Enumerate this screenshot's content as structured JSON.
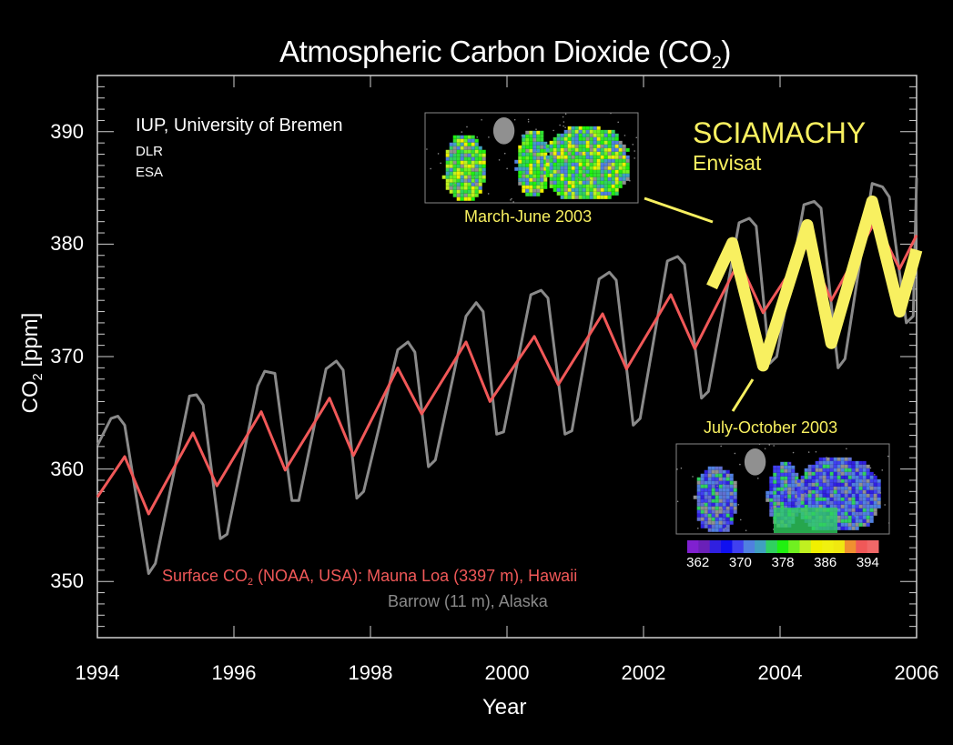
{
  "chart_data": {
    "type": "line",
    "title": "Atmospheric Carbon Dioxide (CO",
    "title_subscript": "2",
    "title_suffix": ")",
    "xlabel": "Year",
    "ylabel": "CO",
    "ylabel_subscript": "2",
    "ylabel_suffix": " [ppm]",
    "xlim": [
      1994,
      2006
    ],
    "ylim": [
      345,
      395
    ],
    "xticks": [
      1994,
      1996,
      1998,
      2000,
      2002,
      2004,
      2006
    ],
    "xtick_labels": [
      "1994",
      "1996",
      "1998",
      "2000",
      "2002",
      "2004",
      "2006"
    ],
    "yticks": [
      350,
      360,
      370,
      380,
      390
    ],
    "ytick_labels": [
      "350",
      "360",
      "370",
      "380",
      "390"
    ],
    "grid": false,
    "credits": [
      "IUP, University of Bremen",
      "DLR",
      "ESA"
    ],
    "instrument": {
      "name": "SCIAMACHY",
      "platform": "Envisat"
    },
    "legend": {
      "placement": "bottom-left",
      "line1_prefix": "Surface CO",
      "line1_subscript": "2",
      "line1_suffix": " (NOAA, USA): Mauna Loa (3397 m), Hawaii",
      "line2": "Barrow (11 m), Alaska"
    },
    "series": [
      {
        "name": "Mauna Loa (3397 m), Hawaii",
        "color": "#f05858",
        "x": [
          1994.0,
          1994.4,
          1994.75,
          1995.4,
          1995.75,
          1996.4,
          1996.75,
          1997.4,
          1997.75,
          1998.4,
          1998.75,
          1999.4,
          1999.75,
          2000.4,
          2000.75,
          2001.4,
          2001.75,
          2002.4,
          2002.75,
          2003.4,
          2003.75,
          2004.4,
          2004.75,
          2005.4,
          2005.75,
          2006.0
        ],
        "y": [
          357.5,
          361.1,
          356.0,
          363.2,
          358.5,
          365.1,
          359.9,
          366.3,
          361.2,
          369.0,
          364.9,
          371.3,
          366.0,
          371.8,
          367.5,
          373.8,
          368.9,
          375.5,
          370.7,
          378.5,
          373.9,
          379.9,
          375.0,
          382.1,
          377.8,
          380.8
        ]
      },
      {
        "name": "Barrow (11 m), Alaska",
        "color": "#8a8a8a",
        "x": [
          1994.0,
          1994.2,
          1994.3,
          1994.4,
          1994.75,
          1994.85,
          1995.35,
          1995.45,
          1995.55,
          1995.8,
          1995.9,
          1996.35,
          1996.45,
          1996.6,
          1996.85,
          1996.95,
          1997.35,
          1997.5,
          1997.6,
          1997.8,
          1997.9,
          1998.4,
          1998.55,
          1998.65,
          1998.85,
          1998.95,
          1999.4,
          1999.55,
          1999.65,
          1999.85,
          1999.95,
          2000.35,
          2000.5,
          2000.6,
          2000.85,
          2000.95,
          2001.35,
          2001.5,
          2001.6,
          2001.85,
          2001.95,
          2002.35,
          2002.5,
          2002.6,
          2002.85,
          2002.95,
          2003.4,
          2003.55,
          2003.65,
          2003.85,
          2003.95,
          2004.35,
          2004.5,
          2004.6,
          2004.85,
          2004.95,
          2005.35,
          2005.5,
          2005.6,
          2005.85,
          2005.95,
          2006.0
        ],
        "y": [
          362.1,
          364.5,
          364.7,
          363.9,
          350.7,
          351.6,
          366.5,
          366.6,
          365.7,
          353.8,
          354.2,
          367.4,
          368.7,
          368.5,
          357.2,
          357.2,
          368.9,
          369.6,
          368.8,
          357.4,
          358.0,
          370.6,
          371.3,
          370.4,
          360.2,
          360.8,
          373.6,
          374.8,
          374.0,
          363.1,
          363.3,
          375.5,
          375.9,
          375.2,
          363.1,
          363.4,
          376.9,
          377.5,
          376.8,
          363.9,
          364.5,
          378.5,
          378.9,
          378.2,
          366.3,
          366.9,
          381.9,
          382.3,
          381.6,
          369.4,
          370.0,
          383.5,
          383.8,
          383.2,
          369.0,
          369.8,
          385.4,
          385.1,
          384.2,
          373.0,
          373.6,
          385.9
        ]
      },
      {
        "name": "SCIAMACHY",
        "color": "#f8f060",
        "x": [
          2003.0,
          2003.3,
          2003.75,
          2004.4,
          2004.75,
          2005.35,
          2005.75,
          2006.0
        ],
        "y": [
          376.2,
          380.1,
          369.2,
          381.7,
          371.2,
          383.8,
          374.0,
          379.5
        ]
      }
    ],
    "annotations": [
      {
        "text": "March-June 2003",
        "points_to_year": 2003.3,
        "points_to_ppm": 380.1
      },
      {
        "text": "July-October 2003",
        "points_to_year": 2003.75,
        "points_to_ppm": 369.2
      }
    ],
    "inset_maps": [
      {
        "caption": "March-June 2003",
        "dominant": "green/yellow"
      },
      {
        "caption": "July-October 2003",
        "dominant": "blue"
      }
    ],
    "colorbar": {
      "ticks": [
        "362",
        "370",
        "378",
        "386",
        "394"
      ],
      "range": [
        360,
        396
      ],
      "colors": [
        "#8020d0",
        "#6a20b8",
        "#3020e0",
        "#1010f0",
        "#4040f0",
        "#5080e0",
        "#40a0c0",
        "#30d060",
        "#20f010",
        "#70f020",
        "#c0f020",
        "#f0f000",
        "#f0f010",
        "#f0e810",
        "#f09030",
        "#f05858",
        "#f06868"
      ]
    }
  }
}
